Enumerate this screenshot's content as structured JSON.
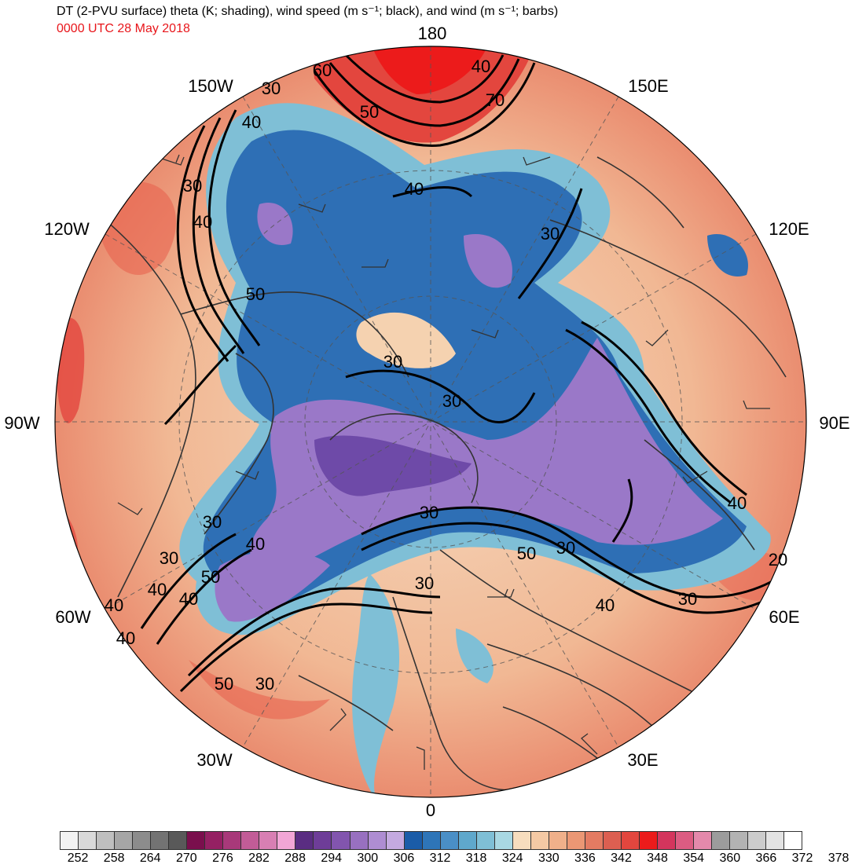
{
  "title": "DT (2-PVU surface) theta (K; shading), wind speed (m s⁻¹; black), and wind (m s⁻¹; barbs)",
  "valid_time": "0000 UTC 28 May 2018",
  "longitude_labels": {
    "n180": "180",
    "w150": "150W",
    "e150": "150E",
    "w120": "120W",
    "e120": "120E",
    "w90": "90W",
    "e90": "90E",
    "w60": "60W",
    "e60": "60E",
    "w30": "30W",
    "e30": "30E",
    "s0": "0"
  },
  "contour_labels": [
    {
      "id": "c1",
      "text": "60"
    },
    {
      "id": "c2",
      "text": "40"
    },
    {
      "id": "c3",
      "text": "30"
    },
    {
      "id": "c4",
      "text": "50"
    },
    {
      "id": "c5",
      "text": "70"
    },
    {
      "id": "c6",
      "text": "40"
    },
    {
      "id": "c7",
      "text": "40"
    },
    {
      "id": "c8",
      "text": "30"
    },
    {
      "id": "c9",
      "text": "40"
    },
    {
      "id": "c10",
      "text": "30"
    },
    {
      "id": "c11",
      "text": "50"
    },
    {
      "id": "c12",
      "text": "30"
    },
    {
      "id": "c13",
      "text": "30"
    },
    {
      "id": "c14",
      "text": "30"
    },
    {
      "id": "c15",
      "text": "40"
    },
    {
      "id": "c16",
      "text": "40"
    },
    {
      "id": "c17",
      "text": "50"
    },
    {
      "id": "c18",
      "text": "30"
    },
    {
      "id": "c19",
      "text": "30"
    },
    {
      "id": "c20",
      "text": "50"
    },
    {
      "id": "c21",
      "text": "30"
    },
    {
      "id": "c22",
      "text": "40"
    },
    {
      "id": "c23",
      "text": "30"
    },
    {
      "id": "c24",
      "text": "20"
    },
    {
      "id": "c25",
      "text": "40"
    },
    {
      "id": "c26",
      "text": "50"
    },
    {
      "id": "c27",
      "text": "30"
    },
    {
      "id": "c28",
      "text": "40"
    },
    {
      "id": "c29",
      "text": "40"
    },
    {
      "id": "c30",
      "text": "40"
    },
    {
      "id": "c31",
      "text": "30"
    }
  ],
  "colorbar": {
    "ticks": [
      "252",
      "258",
      "264",
      "270",
      "276",
      "282",
      "288",
      "294",
      "300",
      "306",
      "312",
      "318",
      "324",
      "330",
      "336",
      "342",
      "348",
      "354",
      "360",
      "366",
      "372",
      "378"
    ],
    "colors": [
      "#f2f2f2",
      "#d9d9d9",
      "#bfbfbf",
      "#a6a6a6",
      "#8c8c8c",
      "#737373",
      "#595959",
      "#7a0f4d",
      "#952063",
      "#a8397a",
      "#c25c97",
      "#d87fb3",
      "#f2a6d6",
      "#5a2d82",
      "#6e3d98",
      "#8255ae",
      "#9870c0",
      "#ae8dd2",
      "#c4aae0",
      "#1a5ca8",
      "#2e75b8",
      "#4a8fc6",
      "#5fa8cc",
      "#7fbfd6",
      "#a9d8e3",
      "#f7ddbe",
      "#f4c9a4",
      "#f0b08a",
      "#eb9774",
      "#e47b62",
      "#dc5f51",
      "#e3463e",
      "#ec1b1b",
      "#d4355d",
      "#dc5c82",
      "#e489ab",
      "#9c9c9c",
      "#b3b3b3",
      "#cccccc",
      "#e3e3e3",
      "#ffffff"
    ]
  },
  "map_colors": {
    "polar_blue": "#2e6fb5",
    "purple": "#9a78c8",
    "dark_purple": "#6e4aa8",
    "light_blue": "#7fbfd6",
    "tan": "#f5d2b0",
    "orange": "#ec9a78",
    "red": "#e8402f",
    "coast": "#333333",
    "contour": "#000000"
  }
}
